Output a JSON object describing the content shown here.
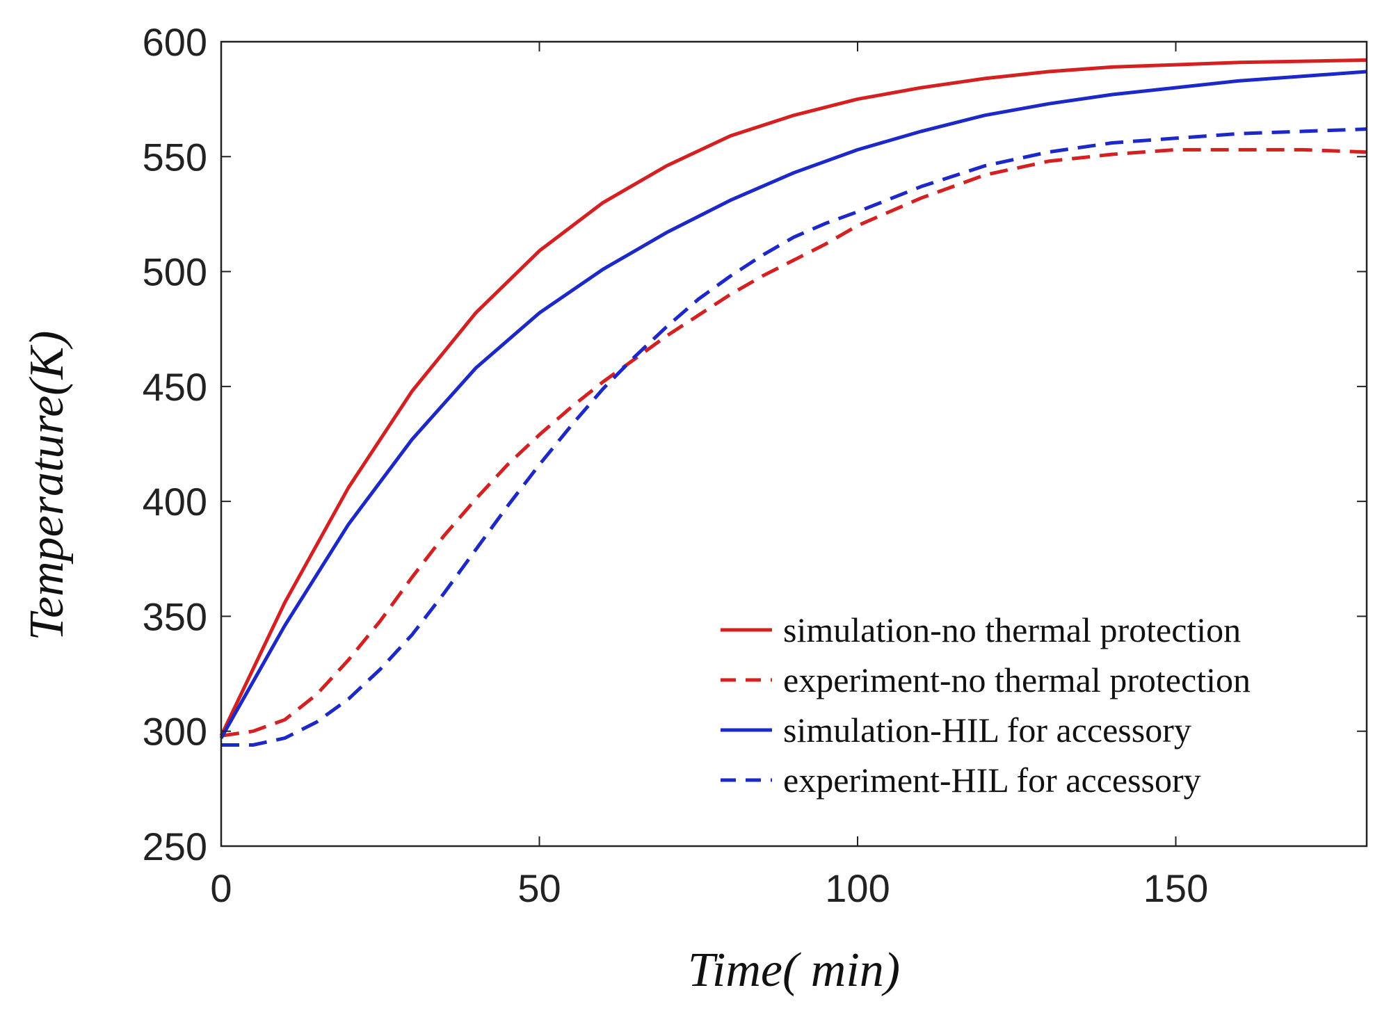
{
  "chart_data": {
    "type": "line",
    "title": "",
    "xlabel": "Time( min)",
    "ylabel": "Temperature(K)",
    "xlim": [
      0,
      180
    ],
    "ylim": [
      250,
      600
    ],
    "xticks": [
      0,
      50,
      100,
      150
    ],
    "yticks": [
      250,
      300,
      350,
      400,
      450,
      500,
      550,
      600
    ],
    "grid": false,
    "legend_position": "bottom-right",
    "series": [
      {
        "name": "simulation-no thermal protection",
        "color": "#d42020",
        "dash": "solid",
        "x": [
          0,
          10,
          20,
          30,
          40,
          50,
          60,
          70,
          80,
          90,
          100,
          110,
          120,
          130,
          140,
          150,
          160,
          170,
          180
        ],
        "y": [
          298,
          356,
          406,
          448,
          482,
          509,
          530,
          546,
          559,
          568,
          575,
          580,
          584,
          587,
          589,
          590,
          591,
          591.5,
          592
        ]
      },
      {
        "name": "experiment-no thermal protection",
        "color": "#d42020",
        "dash": "dashed",
        "x": [
          0,
          5,
          10,
          15,
          20,
          25,
          30,
          35,
          40,
          45,
          50,
          55,
          60,
          65,
          70,
          75,
          80,
          85,
          90,
          95,
          100,
          110,
          120,
          130,
          140,
          150,
          160,
          170,
          180
        ],
        "y": [
          298,
          300,
          305,
          316,
          331,
          348,
          367,
          385,
          401,
          416,
          429,
          441,
          452,
          462,
          472,
          481,
          490,
          498,
          505,
          512,
          520,
          532,
          542,
          548,
          551,
          553,
          553,
          553,
          552
        ]
      },
      {
        "name": "simulation-HIL for accessory",
        "color": "#1c28c8",
        "dash": "solid",
        "x": [
          0,
          10,
          20,
          30,
          40,
          50,
          60,
          70,
          80,
          90,
          100,
          110,
          120,
          130,
          140,
          150,
          160,
          170,
          180
        ],
        "y": [
          297,
          346,
          390,
          427,
          458,
          482,
          501,
          517,
          531,
          543,
          553,
          561,
          568,
          573,
          577,
          580,
          583,
          585,
          587
        ]
      },
      {
        "name": "experiment-HIL for accessory",
        "color": "#1c28c8",
        "dash": "dashed",
        "x": [
          0,
          5,
          10,
          15,
          20,
          25,
          30,
          35,
          40,
          45,
          50,
          55,
          60,
          65,
          70,
          75,
          80,
          85,
          90,
          95,
          100,
          110,
          120,
          130,
          140,
          150,
          160,
          170,
          180
        ],
        "y": [
          294,
          294,
          297,
          304,
          314,
          327,
          342,
          360,
          379,
          398,
          416,
          433,
          449,
          463,
          476,
          488,
          498,
          507,
          515,
          521,
          526,
          537,
          546,
          552,
          556,
          558,
          560,
          561,
          562
        ]
      }
    ]
  }
}
